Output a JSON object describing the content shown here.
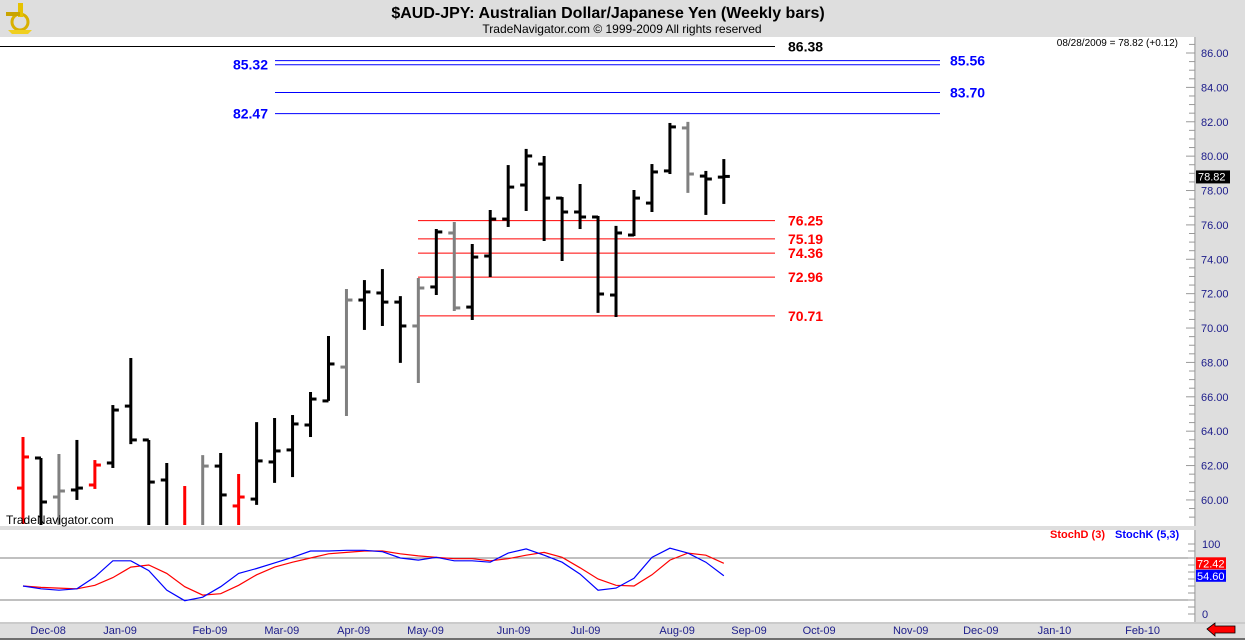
{
  "header": {
    "title": "$AUD-JPY:  Australian Dollar/Japanese Yen  (Weekly bars)",
    "subtitle": "TradeNavigator.com © 1999-2009 All rights reserved",
    "last_info": "08/28/2009 = 78.82 (+0.12)",
    "watermark": "TradeNavigator.com",
    "logo_icon": "sextant-logo-icon",
    "nav_icon": "red-left-arrow-icon"
  },
  "colors": {
    "up": "#000000",
    "neutral": "#808080",
    "down": "#ff0000",
    "blue": "#0000ff",
    "red": "#ff0000",
    "axis_text": "#1c1c8a"
  },
  "chart_data": [
    {
      "type": "ohlc",
      "title": "$AUD-JPY:  Australian Dollar/Japanese Yen  (Weekly bars)",
      "ylim": [
        58.8,
        86.8
      ],
      "y_ticks": [
        "60.00",
        "62.00",
        "64.00",
        "66.00",
        "68.00",
        "70.00",
        "72.00",
        "74.00",
        "76.00",
        "78.00",
        "80.00",
        "82.00",
        "84.00",
        "86.00"
      ],
      "last_price_label": "78.82",
      "x_labels": [
        {
          "label": "Dec-08",
          "week": 1.4
        },
        {
          "label": "Jan-09",
          "week": 5.4
        },
        {
          "label": "Feb-09",
          "week": 10.4
        },
        {
          "label": "Mar-09",
          "week": 14.4
        },
        {
          "label": "Apr-09",
          "week": 18.4
        },
        {
          "label": "May-09",
          "week": 22.4
        },
        {
          "label": "Jun-09",
          "week": 27.3
        },
        {
          "label": "Jul-09",
          "week": 31.3
        },
        {
          "label": "Aug-09",
          "week": 36.4
        },
        {
          "label": "Sep-09",
          "week": 40.4
        },
        {
          "label": "Oct-09",
          "week": 44.3
        },
        {
          "label": "Nov-09",
          "week": 49.4
        },
        {
          "label": "Dec-09",
          "week": 53.3
        },
        {
          "label": "Jan-10",
          "week": 57.4
        },
        {
          "label": "Feb-10",
          "week": 62.3
        }
      ],
      "bars": [
        {
          "o": 60.69,
          "h": 63.66,
          "l": 58.6,
          "c": 62.5,
          "color": "red"
        },
        {
          "o": 62.44,
          "h": 62.44,
          "l": 58.5,
          "c": 59.88,
          "color": "black"
        },
        {
          "o": 60.17,
          "h": 62.67,
          "l": 58.5,
          "c": 60.52,
          "color": "gray"
        },
        {
          "o": 60.58,
          "h": 63.49,
          "l": 60.0,
          "c": 60.69,
          "color": "black"
        },
        {
          "o": 60.87,
          "h": 62.32,
          "l": 60.64,
          "c": 62.03,
          "color": "red"
        },
        {
          "o": 62.15,
          "h": 65.52,
          "l": 61.86,
          "c": 65.23,
          "color": "black"
        },
        {
          "o": 65.46,
          "h": 68.26,
          "l": 63.25,
          "c": 63.49,
          "color": "black"
        },
        {
          "o": 63.49,
          "h": 63.49,
          "l": 58.0,
          "c": 61.04,
          "color": "black"
        },
        {
          "o": 61.16,
          "h": 62.15,
          "l": 58.0,
          "c": 58.3,
          "color": "black"
        },
        {
          "o": 58.3,
          "h": 60.81,
          "l": 57.5,
          "c": 58.0,
          "color": "red"
        },
        {
          "o": 58.3,
          "h": 62.61,
          "l": 58.0,
          "c": 61.97,
          "color": "gray"
        },
        {
          "o": 61.97,
          "h": 62.73,
          "l": 58.0,
          "c": 60.29,
          "color": "black"
        },
        {
          "o": 59.65,
          "h": 61.51,
          "l": 58.0,
          "c": 60.17,
          "color": "red"
        },
        {
          "o": 60.05,
          "h": 64.53,
          "l": 59.71,
          "c": 62.27,
          "color": "black"
        },
        {
          "o": 62.21,
          "h": 64.77,
          "l": 60.99,
          "c": 62.85,
          "color": "black"
        },
        {
          "o": 62.91,
          "h": 64.94,
          "l": 61.33,
          "c": 64.42,
          "color": "black"
        },
        {
          "o": 64.36,
          "h": 66.28,
          "l": 63.66,
          "c": 65.87,
          "color": "black"
        },
        {
          "o": 65.76,
          "h": 69.54,
          "l": 65.76,
          "c": 67.91,
          "color": "black"
        },
        {
          "o": 67.73,
          "h": 72.27,
          "l": 64.88,
          "c": 71.63,
          "color": "gray"
        },
        {
          "o": 71.63,
          "h": 72.79,
          "l": 69.89,
          "c": 72.1,
          "color": "black"
        },
        {
          "o": 72.04,
          "h": 73.43,
          "l": 70.12,
          "c": 71.51,
          "color": "black"
        },
        {
          "o": 71.51,
          "h": 71.86,
          "l": 67.97,
          "c": 70.12,
          "color": "black"
        },
        {
          "o": 70.12,
          "h": 72.91,
          "l": 66.8,
          "c": 72.33,
          "color": "gray"
        },
        {
          "o": 72.39,
          "h": 75.76,
          "l": 71.92,
          "c": 75.59,
          "color": "black"
        },
        {
          "o": 75.53,
          "h": 76.17,
          "l": 70.99,
          "c": 71.17,
          "color": "gray"
        },
        {
          "o": 71.22,
          "h": 74.89,
          "l": 70.47,
          "c": 74.13,
          "color": "black"
        },
        {
          "o": 74.19,
          "h": 76.87,
          "l": 72.97,
          "c": 76.34,
          "color": "black"
        },
        {
          "o": 76.34,
          "h": 79.48,
          "l": 75.88,
          "c": 78.2,
          "color": "black"
        },
        {
          "o": 78.32,
          "h": 80.42,
          "l": 76.81,
          "c": 80.01,
          "color": "black"
        },
        {
          "o": 79.54,
          "h": 80.01,
          "l": 75.06,
          "c": 77.56,
          "color": "black"
        },
        {
          "o": 77.56,
          "h": 77.62,
          "l": 73.9,
          "c": 76.75,
          "color": "black"
        },
        {
          "o": 76.75,
          "h": 78.38,
          "l": 75.76,
          "c": 76.46,
          "color": "black"
        },
        {
          "o": 76.46,
          "h": 76.52,
          "l": 70.88,
          "c": 71.98,
          "color": "black"
        },
        {
          "o": 71.92,
          "h": 75.94,
          "l": 70.64,
          "c": 75.53,
          "color": "black"
        },
        {
          "o": 75.41,
          "h": 78.03,
          "l": 75.35,
          "c": 77.56,
          "color": "black"
        },
        {
          "o": 77.27,
          "h": 79.54,
          "l": 76.75,
          "c": 79.08,
          "color": "black"
        },
        {
          "o": 79.14,
          "h": 81.93,
          "l": 78.96,
          "c": 81.7,
          "color": "black"
        },
        {
          "o": 81.64,
          "h": 81.99,
          "l": 77.86,
          "c": 78.96,
          "color": "gray"
        },
        {
          "o": 78.84,
          "h": 79.14,
          "l": 76.58,
          "c": 78.67,
          "color": "black"
        },
        {
          "o": 78.78,
          "h": 79.83,
          "l": 77.22,
          "c": 78.82,
          "color": "black"
        }
      ],
      "levels": [
        {
          "value": 86.38,
          "label": "86.38",
          "group": "top",
          "color": "#000000",
          "label_side": "right"
        },
        {
          "value": 85.56,
          "label": "85.56",
          "group": "blue",
          "color": "#0000ff",
          "label_side": "right"
        },
        {
          "value": 85.32,
          "label": "85.32",
          "group": "blue",
          "color": "#0000ff",
          "label_side": "left"
        },
        {
          "value": 83.7,
          "label": "83.70",
          "group": "blue",
          "color": "#0000ff",
          "label_side": "right"
        },
        {
          "value": 82.47,
          "label": "82.47",
          "group": "blue",
          "color": "#0000ff",
          "label_side": "left"
        },
        {
          "value": 76.25,
          "label": "76.25",
          "group": "red",
          "color": "#ff0000",
          "label_side": "right"
        },
        {
          "value": 75.19,
          "label": "75.19",
          "group": "red",
          "color": "#ff0000",
          "label_side": "right"
        },
        {
          "value": 74.36,
          "label": "74.36",
          "group": "red",
          "color": "#ff0000",
          "label_side": "right"
        },
        {
          "value": 72.96,
          "label": "72.96",
          "group": "red",
          "color": "#ff0000",
          "label_side": "right"
        },
        {
          "value": 70.71,
          "label": "70.71",
          "group": "red",
          "color": "#ff0000",
          "label_side": "right"
        }
      ]
    },
    {
      "type": "line",
      "ylim": [
        0,
        100
      ],
      "y_ticks": [
        "0",
        "100"
      ],
      "ref_lines": [
        20,
        80
      ],
      "series": [
        {
          "name": "StochD (3)",
          "color": "#ff0000",
          "last_label": "72.42",
          "values": [
            40,
            38,
            37,
            36,
            41,
            52,
            67,
            70,
            58,
            39,
            27,
            29,
            41,
            56,
            67,
            74,
            80,
            86,
            88,
            90,
            90,
            86,
            83,
            81,
            79,
            79,
            76,
            79,
            84,
            88,
            81,
            66,
            50,
            41,
            40,
            56,
            77,
            87,
            84,
            72.42
          ]
        },
        {
          "name": "StochK (5,3)",
          "color": "#0000ff",
          "last_label": "54.60",
          "values": [
            40,
            36,
            34,
            36,
            53,
            76,
            76,
            62,
            34,
            19,
            24,
            39,
            58,
            65,
            73,
            81,
            90,
            90,
            91,
            91,
            89,
            80,
            77,
            81,
            76,
            76,
            74,
            87,
            93,
            84,
            74,
            57,
            34,
            37,
            51,
            81,
            94,
            87,
            74,
            54.6
          ]
        }
      ]
    }
  ]
}
